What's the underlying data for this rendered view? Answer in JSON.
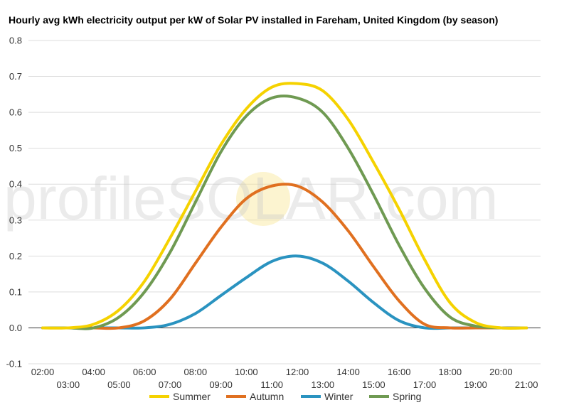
{
  "chart_data": {
    "type": "line",
    "title": "Hourly avg kWh electricity output per kW of Solar PV installed in Fareham, United Kingdom (by season)",
    "xlabel": "",
    "ylabel": "",
    "ylim": [
      -0.1,
      0.8
    ],
    "yticks": [
      "-0.1",
      "0.0",
      "0.1",
      "0.2",
      "0.3",
      "0.4",
      "0.5",
      "0.6",
      "0.7",
      "0.8"
    ],
    "x_tick_labels": [
      "02:00",
      "03:00",
      "04:00",
      "05:00",
      "06:00",
      "07:00",
      "08:00",
      "09:00",
      "10:00",
      "11:00",
      "12:00",
      "13:00",
      "14:00",
      "15:00",
      "16:00",
      "17:00",
      "18:00",
      "19:00",
      "20:00",
      "21:00"
    ],
    "grid": true,
    "legend_position": "bottom",
    "watermark": "profileSOLAR.com",
    "series": [
      {
        "name": "Summer",
        "color": "#f5d200",
        "values": [
          0.0,
          0.0,
          0.01,
          0.05,
          0.13,
          0.25,
          0.38,
          0.51,
          0.61,
          0.67,
          0.68,
          0.66,
          0.58,
          0.46,
          0.33,
          0.19,
          0.07,
          0.015,
          0.0,
          0.0
        ]
      },
      {
        "name": "Autumn",
        "color": "#e07020",
        "values": [
          0.0,
          0.0,
          0.0,
          0.0,
          0.02,
          0.08,
          0.18,
          0.28,
          0.36,
          0.395,
          0.395,
          0.35,
          0.27,
          0.17,
          0.075,
          0.01,
          0.0,
          0.0,
          0.0,
          0.0
        ]
      },
      {
        "name": "Winter",
        "color": "#2a93c0",
        "values": [
          0.0,
          0.0,
          0.0,
          0.0,
          0.0,
          0.01,
          0.04,
          0.09,
          0.14,
          0.185,
          0.2,
          0.18,
          0.13,
          0.07,
          0.02,
          0.0,
          0.0,
          0.0,
          0.0,
          0.0
        ]
      },
      {
        "name": "Spring",
        "color": "#6f9a52",
        "values": [
          0.0,
          0.0,
          0.0,
          0.03,
          0.1,
          0.21,
          0.35,
          0.49,
          0.59,
          0.64,
          0.64,
          0.6,
          0.5,
          0.37,
          0.23,
          0.11,
          0.03,
          0.005,
          0.0,
          0.0
        ]
      }
    ]
  }
}
